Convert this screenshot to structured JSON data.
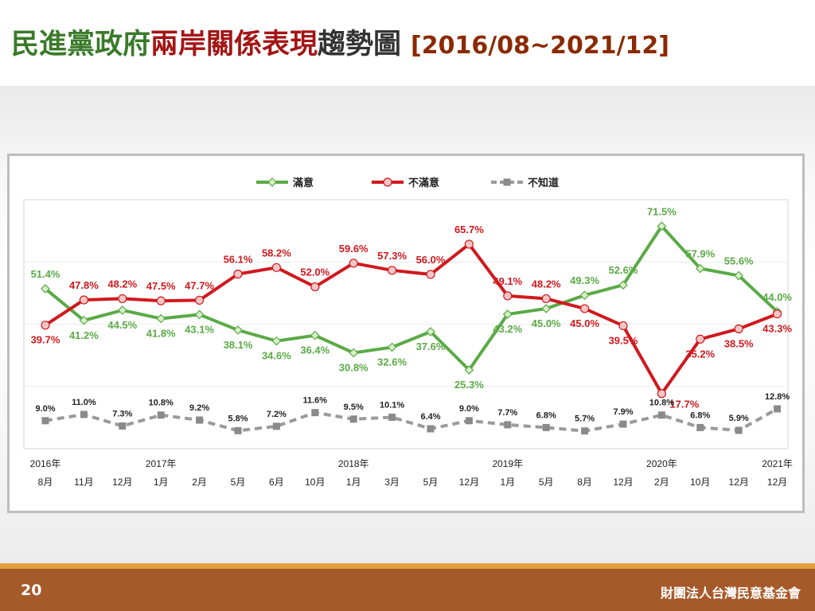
{
  "title": {
    "part1": "民進黨政府",
    "part2": "兩岸關係表現",
    "part3": "趨勢圖",
    "range": "[2016/08~2021/12]",
    "colors": {
      "part1": "#3a7a2a",
      "part2": "#a31515",
      "part3": "#333333",
      "range": "#8b2a00"
    }
  },
  "footer": {
    "page_number": "20",
    "organization": "財團法人台灣民意基金會"
  },
  "chart_data": {
    "type": "line",
    "title": "",
    "xlabel": "",
    "ylabel": "",
    "ylim": [
      0,
      80
    ],
    "legend_position": "top-center",
    "grid": true,
    "categories": [
      "8月",
      "11月",
      "12月",
      "1月",
      "2月",
      "5月",
      "6月",
      "10月",
      "1月",
      "3月",
      "5月",
      "12月",
      "1月",
      "5月",
      "8月",
      "12月",
      "2月",
      "10月",
      "12月",
      "12月"
    ],
    "year_labels": [
      {
        "index": 0,
        "label": "2016年"
      },
      {
        "index": 3,
        "label": "2017年"
      },
      {
        "index": 8,
        "label": "2018年"
      },
      {
        "index": 12,
        "label": "2019年"
      },
      {
        "index": 16,
        "label": "2020年"
      },
      {
        "index": 19,
        "label": "2021年"
      }
    ],
    "series": [
      {
        "name": "滿意",
        "color": "#5aaa46",
        "dash": false,
        "marker": "diamond",
        "values": [
          51.4,
          41.2,
          44.5,
          41.8,
          43.1,
          38.1,
          34.6,
          36.4,
          30.8,
          32.6,
          37.6,
          25.3,
          43.2,
          45.0,
          49.3,
          52.6,
          71.5,
          57.9,
          55.6,
          44.0
        ],
        "labels": [
          "51.4%",
          "41.2%",
          "44.5%",
          "41.8%",
          "43.1%",
          "38.1%",
          "34.6%",
          "36.4%",
          "30.8%",
          "32.6%",
          "37.6%",
          "25.3%",
          "43.2%",
          "45.0%",
          "49.3%",
          "52.6%",
          "71.5%",
          "57.9%",
          "55.6%",
          "44.0%"
        ],
        "label_side": [
          "above",
          "below",
          "below",
          "below",
          "below",
          "below",
          "below",
          "below",
          "below",
          "below",
          "below",
          "below",
          "below",
          "below",
          "above",
          "above",
          "above",
          "above",
          "above",
          "above"
        ]
      },
      {
        "name": "不滿意",
        "color": "#d0191e",
        "dash": false,
        "marker": "circle",
        "values": [
          39.7,
          47.8,
          48.2,
          47.5,
          47.7,
          56.1,
          58.2,
          52.0,
          59.6,
          57.3,
          56.0,
          65.7,
          49.1,
          48.2,
          45.0,
          39.5,
          17.7,
          35.2,
          38.5,
          43.3
        ],
        "labels": [
          "39.7%",
          "47.8%",
          "48.2%",
          "47.5%",
          "47.7%",
          "56.1%",
          "58.2%",
          "52.0%",
          "59.6%",
          "57.3%",
          "56.0%",
          "65.7%",
          "49.1%",
          "48.2%",
          "45.0%",
          "39.5%",
          "17.7%",
          "35.2%",
          "38.5%",
          "43.3%"
        ],
        "label_side": [
          "below",
          "above",
          "above",
          "above",
          "above",
          "above",
          "above",
          "above",
          "above",
          "above",
          "above",
          "above",
          "above",
          "above",
          "below",
          "below",
          "right",
          "below",
          "below",
          "below"
        ]
      },
      {
        "name": "不知道",
        "color": "#9a9a9a",
        "dash": true,
        "marker": "square",
        "values": [
          9.0,
          11.0,
          7.3,
          10.8,
          9.2,
          5.8,
          7.2,
          11.6,
          9.5,
          10.1,
          6.4,
          9.0,
          7.7,
          6.8,
          5.7,
          7.9,
          10.8,
          6.8,
          5.9,
          12.8
        ],
        "labels": [
          "9.0%",
          "11.0%",
          "7.3%",
          "10.8%",
          "9.2%",
          "5.8%",
          "7.2%",
          "11.6%",
          "9.5%",
          "10.1%",
          "6.4%",
          "9.0%",
          "7.7%",
          "6.8%",
          "5.7%",
          "7.9%",
          "10.8%",
          "6.8%",
          "5.9%",
          "12.8%"
        ],
        "label_side": [
          "above",
          "above",
          "above",
          "above",
          "above",
          "above",
          "above",
          "above",
          "above",
          "above",
          "above",
          "above",
          "above",
          "above",
          "above",
          "above",
          "above",
          "above",
          "above",
          "above"
        ]
      }
    ]
  }
}
